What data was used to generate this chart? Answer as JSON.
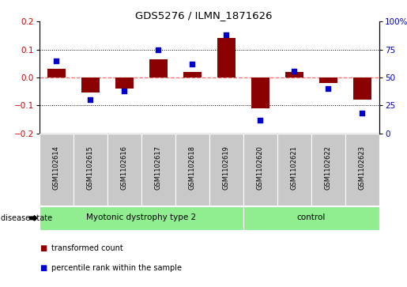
{
  "title": "GDS5276 / ILMN_1871626",
  "samples": [
    "GSM1102614",
    "GSM1102615",
    "GSM1102616",
    "GSM1102617",
    "GSM1102618",
    "GSM1102619",
    "GSM1102620",
    "GSM1102621",
    "GSM1102622",
    "GSM1102623"
  ],
  "transformed_count": [
    0.03,
    -0.055,
    -0.04,
    0.065,
    0.02,
    0.14,
    -0.11,
    0.02,
    -0.02,
    -0.08
  ],
  "percentile_rank": [
    65,
    30,
    38,
    75,
    62,
    88,
    12,
    56,
    40,
    18
  ],
  "groups": [
    {
      "label": "Myotonic dystrophy type 2",
      "start": 0,
      "end": 6
    },
    {
      "label": "control",
      "start": 6,
      "end": 10
    }
  ],
  "ylim_left": [
    -0.2,
    0.2
  ],
  "ylim_right": [
    0,
    100
  ],
  "yticks_left": [
    -0.2,
    -0.1,
    0.0,
    0.1,
    0.2
  ],
  "yticks_right": [
    0,
    25,
    50,
    75,
    100
  ],
  "bar_color": "#8B0000",
  "dot_color": "#0000CD",
  "grid_color": "#000000",
  "zero_line_color": "#FF6666",
  "disease_state_label": "disease state",
  "legend_bar_label": "transformed count",
  "legend_dot_label": "percentile rank within the sample",
  "label_area_color": "#C8C8C8",
  "group_box_color": "#90EE90",
  "left_tick_color": "#CC0000",
  "right_tick_color": "#0000CD"
}
